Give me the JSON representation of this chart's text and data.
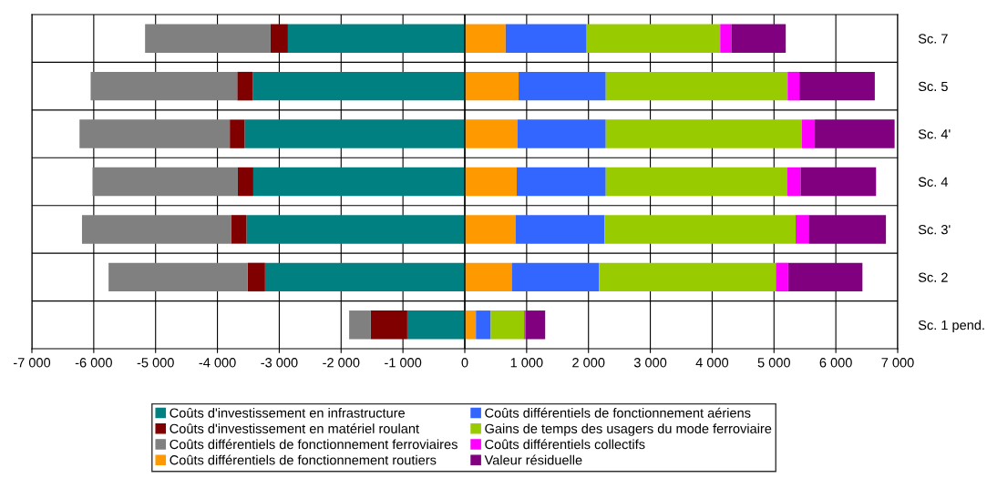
{
  "chart_data": {
    "type": "bar",
    "orientation": "horizontal",
    "stacked": true,
    "grid": true,
    "legend": "bottom",
    "categories": [
      "Sc. 7",
      "Sc. 5",
      "Sc. 4'",
      "Sc. 4",
      "Sc. 3'",
      "Sc. 2",
      "Sc. 1 pend."
    ],
    "xlim": [
      -7000,
      7000
    ],
    "xticks": [
      {
        "value": -7000,
        "label": "-7 000"
      },
      {
        "value": -6000,
        "label": "-6 000"
      },
      {
        "value": -5000,
        "label": "-5 000"
      },
      {
        "value": -4000,
        "label": "-4 000"
      },
      {
        "value": -3000,
        "label": "-3 000"
      },
      {
        "value": -2000,
        "label": "-2 000"
      },
      {
        "value": -1000,
        "label": "-1 000"
      },
      0,
      {
        "value": 1000,
        "label": "1 000"
      },
      {
        "value": 2000,
        "label": "2 000"
      },
      {
        "value": 3000,
        "label": "3 000"
      },
      {
        "value": 4000,
        "label": "4 000"
      },
      {
        "value": 5000,
        "label": "5 000"
      },
      {
        "value": 6000,
        "label": "6 000"
      },
      {
        "value": 7000,
        "label": "7 000"
      }
    ],
    "series": [
      {
        "name": "Coûts d'investissement en infrastructure",
        "color": "#008080",
        "values": [
          -2860,
          -3430,
          -3560,
          -3420,
          -3530,
          -3230,
          -930
        ]
      },
      {
        "name": "Coûts d'investissement en matériel roulant",
        "color": "#800000",
        "values": [
          -280,
          -250,
          -240,
          -250,
          -250,
          -280,
          -590
        ]
      },
      {
        "name": "Coûts différentiels de fonctionnement ferroviaires",
        "color": "#808080",
        "values": [
          -2030,
          -2370,
          -2430,
          -2350,
          -2410,
          -2250,
          -350
        ]
      },
      {
        "name": "Coûts différentiels de fonctionnement routiers",
        "color": "#ff9900",
        "values": [
          660,
          870,
          850,
          840,
          820,
          760,
          180
        ]
      },
      {
        "name": "Coûts différentiels de fonctionnement aériens",
        "color": "#3366ff",
        "values": [
          1310,
          1410,
          1430,
          1440,
          1440,
          1410,
          240
        ]
      },
      {
        "name": "Gains de temps des usagers du mode ferroviaire",
        "color": "#99cc00",
        "values": [
          2160,
          2940,
          3170,
          2930,
          3090,
          2860,
          540
        ]
      },
      {
        "name": "Coûts différentiels collectifs",
        "color": "#ff00ff",
        "values": [
          180,
          190,
          210,
          220,
          210,
          200,
          20
        ]
      },
      {
        "name": "Valeur résiduelle",
        "color": "#800080",
        "values": [
          880,
          1220,
          1290,
          1220,
          1250,
          1200,
          320
        ]
      }
    ]
  }
}
